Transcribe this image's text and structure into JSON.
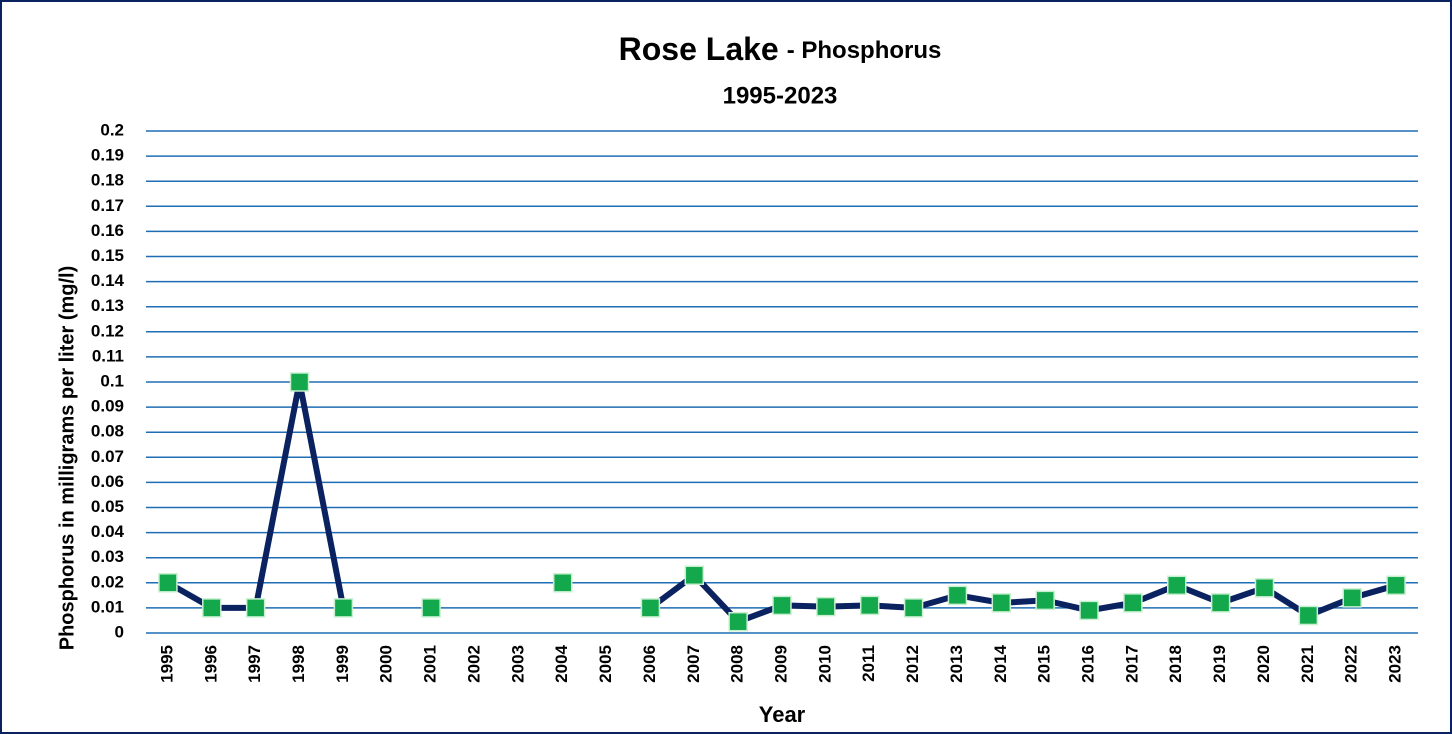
{
  "chart_data": {
    "type": "line",
    "title": "Rose Lake",
    "title_part2": "- Phosphorus",
    "subtitle": "1995-2023",
    "x_label": "Year",
    "y_label": "Phosphorus in milligrams per liter (mg/l)",
    "categories": [
      "1995",
      "1996",
      "1997",
      "1998",
      "1999",
      "2000",
      "2001",
      "2002",
      "2003",
      "2004",
      "2005",
      "2006",
      "2007",
      "2008",
      "2009",
      "2010",
      "2011",
      "2012",
      "2013",
      "2014",
      "2015",
      "2016",
      "2017",
      "2018",
      "2019",
      "2020",
      "2021",
      "2022",
      "2023"
    ],
    "series": [
      {
        "name": "Phosphorus",
        "color": "#0b2260",
        "marker_color": "#13a84b",
        "values": [
          0.02,
          0.01,
          0.01,
          0.1,
          0.01,
          null,
          0.01,
          null,
          null,
          0.02,
          null,
          0.01,
          0.023,
          0.0045,
          0.011,
          0.0105,
          0.011,
          0.01,
          0.015,
          0.012,
          0.013,
          0.009,
          0.012,
          0.019,
          0.012,
          0.018,
          0.007,
          0.014,
          0.019
        ]
      }
    ],
    "ylim": [
      0,
      0.2
    ],
    "yticks": [
      0,
      0.01,
      0.02,
      0.03,
      0.04,
      0.05,
      0.06,
      0.07,
      0.08,
      0.09,
      0.1,
      0.11,
      0.12,
      0.13,
      0.14,
      0.15,
      0.16,
      0.17,
      0.18,
      0.19,
      0.2
    ],
    "grid": true,
    "grid_color": "#1f6db5"
  }
}
